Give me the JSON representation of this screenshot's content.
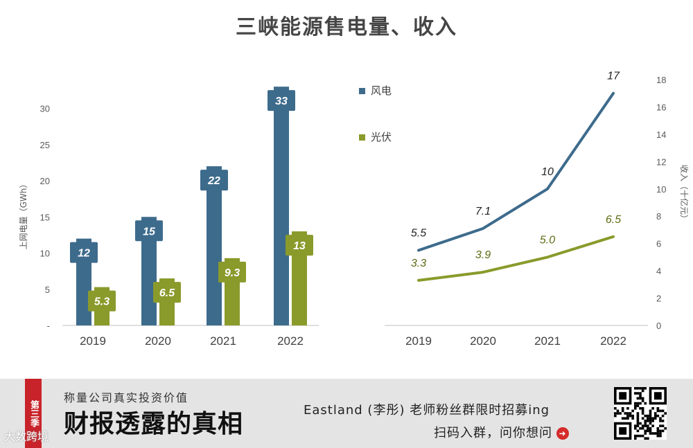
{
  "chart_data": [
    {
      "type": "bar",
      "title": "三峡能源售电量、收入",
      "ylabel": "上网电量（GWh）",
      "ylim": [
        0,
        35
      ],
      "yticks": [
        "-",
        "5",
        "10",
        "15",
        "20",
        "25",
        "30"
      ],
      "categories": [
        "2019",
        "2020",
        "2021",
        "2022"
      ],
      "series": [
        {
          "name": "风电",
          "color": "#3d6b8c",
          "values": [
            12,
            15,
            22,
            33
          ],
          "labels": [
            "12",
            "15",
            "22",
            "33"
          ]
        },
        {
          "name": "光伏",
          "color": "#8a9a2b",
          "values": [
            5.3,
            6.5,
            9.3,
            13
          ],
          "labels": [
            "5.3",
            "6.5",
            "9.3",
            "13"
          ]
        }
      ],
      "legend": "top-right"
    },
    {
      "type": "line",
      "ylabel": "收入（十亿元）",
      "ylim": [
        0,
        18
      ],
      "yticks": [
        "0",
        "2",
        "4",
        "6",
        "8",
        "10",
        "12",
        "14",
        "16",
        "18"
      ],
      "categories": [
        "2019",
        "2020",
        "2021",
        "2022"
      ],
      "series": [
        {
          "name": "风电",
          "color": "#3d6b8c",
          "values": [
            5.5,
            7.1,
            10,
            17
          ],
          "labels": [
            "5.5",
            "7.1",
            "10",
            "17"
          ]
        },
        {
          "name": "光伏",
          "color": "#8a9a2b",
          "values": [
            3.3,
            3.9,
            5.0,
            6.5
          ],
          "labels": [
            "3.3",
            "3.9",
            "5.0",
            "6.5"
          ]
        }
      ]
    }
  ],
  "banner": {
    "season": "第三季",
    "slogan": "称量公司真实投资价值",
    "headline": "财报透露的真相",
    "recruit": "Eastland (李彤) 老师粉丝群限时招募ing",
    "cta": "扫码入群，问你想问",
    "watermark": "大数跨境"
  }
}
